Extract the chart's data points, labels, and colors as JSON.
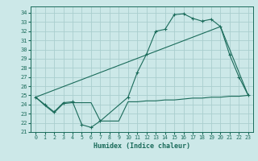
{
  "bg_color": "#cce8e8",
  "grid_color": "#aacece",
  "line_color": "#1a6b5a",
  "xlabel": "Humidex (Indice chaleur)",
  "xlim": [
    -0.5,
    23.5
  ],
  "ylim": [
    21,
    34.7
  ],
  "yticks": [
    21,
    22,
    23,
    24,
    25,
    26,
    27,
    28,
    29,
    30,
    31,
    32,
    33,
    34
  ],
  "xticks": [
    0,
    1,
    2,
    3,
    4,
    5,
    6,
    7,
    8,
    9,
    10,
    11,
    12,
    13,
    14,
    15,
    16,
    17,
    18,
    19,
    20,
    21,
    22,
    23
  ],
  "line1_x": [
    0,
    1,
    2,
    3,
    4,
    5,
    6,
    7,
    10,
    11,
    12,
    13,
    14,
    15,
    16,
    17,
    18,
    19,
    20,
    21,
    22,
    23
  ],
  "line1_y": [
    24.8,
    24.0,
    23.2,
    24.2,
    24.3,
    21.8,
    21.5,
    22.2,
    24.8,
    27.5,
    29.5,
    32.0,
    32.2,
    33.8,
    33.9,
    33.4,
    33.1,
    33.3,
    32.5,
    29.4,
    27.0,
    25.0
  ],
  "line2_x": [
    0,
    20,
    23
  ],
  "line2_y": [
    24.8,
    32.5,
    25.0
  ],
  "line3_x": [
    0,
    1,
    2,
    3,
    4,
    5,
    6,
    7,
    8,
    9,
    10,
    11,
    12,
    13,
    14,
    15,
    16,
    17,
    18,
    19,
    20,
    21,
    22,
    23
  ],
  "line3_y": [
    24.8,
    23.9,
    23.1,
    24.1,
    24.2,
    24.2,
    24.2,
    22.2,
    22.2,
    22.2,
    24.3,
    24.3,
    24.4,
    24.4,
    24.5,
    24.5,
    24.6,
    24.7,
    24.7,
    24.8,
    24.8,
    24.9,
    24.9,
    25.0
  ]
}
